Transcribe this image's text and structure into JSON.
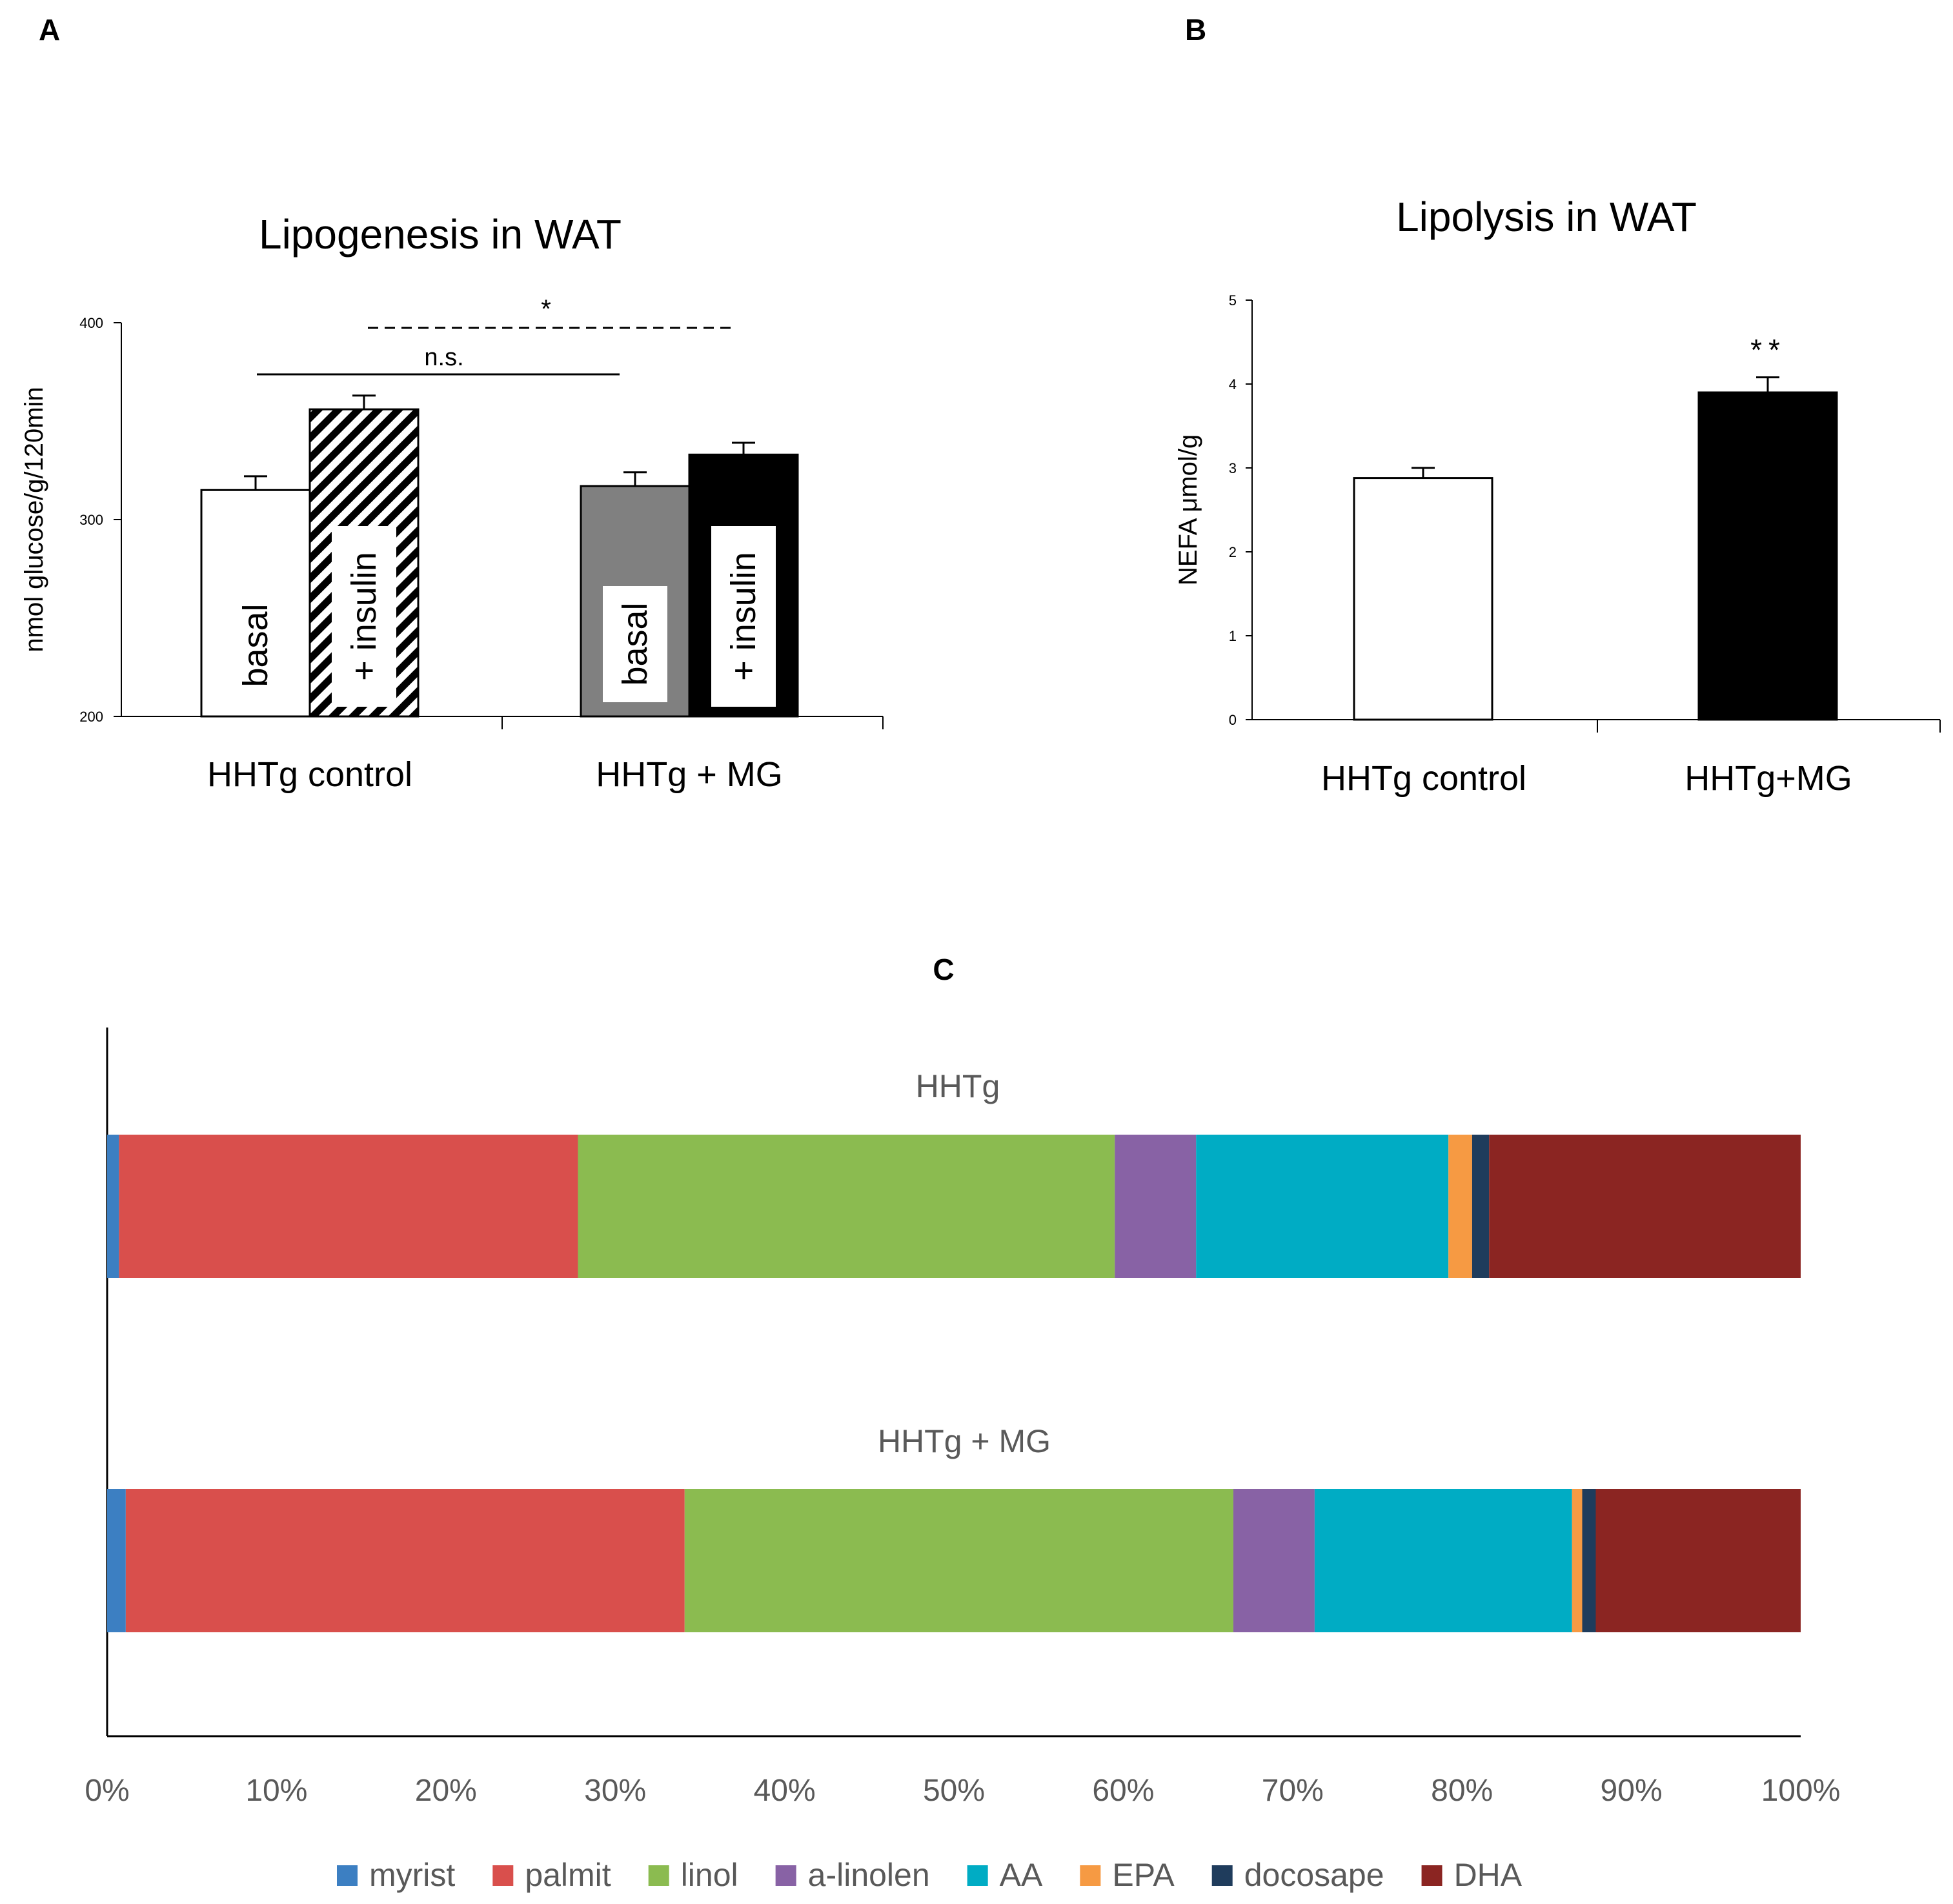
{
  "panel_labels": {
    "a": "A",
    "b": "B",
    "c": "C"
  },
  "colors": {
    "myrist": "#3c7fc2",
    "palmit": "#d94f4c",
    "linol": "#8bbb50",
    "a-linolen": "#8862a5",
    "AA": "#00acc4",
    "EPA": "#f69a43",
    "docosape": "#1f3c5c",
    "DHA": "#8b2522",
    "grey_bar": "#808080",
    "black_bar": "#000000",
    "axis": "#000000",
    "text": "#000000",
    "muted_text": "#595959"
  },
  "chart_data": [
    {
      "panel": "A",
      "type": "bar",
      "title": "Lipogenesis in WAT",
      "ylabel": "nmol glucose/g/120min",
      "xlabel": "",
      "ylim": [
        200,
        400
      ],
      "yticks": [
        "200",
        "300",
        "400"
      ],
      "categories": [
        "HHTg control",
        "HHTg + MG"
      ],
      "series": [
        {
          "name": "basal",
          "values": [
            315,
            317
          ],
          "errors": [
            7,
            7
          ],
          "styles": [
            "white",
            "grey"
          ]
        },
        {
          "name": "+ insulin",
          "values": [
            356,
            333
          ],
          "errors": [
            7,
            6
          ],
          "styles": [
            "hatched",
            "black"
          ]
        }
      ],
      "bar_labels": [
        "basal",
        "+ insulin",
        "basal",
        "+ insulin"
      ],
      "annotations": [
        {
          "text": "n.s.",
          "line": "solid",
          "from": "HHTg control basal",
          "to": "HHTg + MG basal"
        },
        {
          "text": "*",
          "line": "dashed",
          "from": "HHTg control + insulin",
          "to": "HHTg + MG + insulin"
        }
      ]
    },
    {
      "panel": "B",
      "type": "bar",
      "title": "Lipolysis in WAT",
      "ylabel": "NEFA μmol/g",
      "xlabel": "",
      "ylim": [
        0,
        5
      ],
      "yticks": [
        "0",
        "1",
        "2",
        "3",
        "4",
        "5"
      ],
      "categories": [
        "HHTg control",
        "HHTg+MG"
      ],
      "values": [
        2.88,
        3.9
      ],
      "errors": [
        0.12,
        0.18
      ],
      "styles": [
        "white",
        "black"
      ],
      "annotations": [
        {
          "text": "**",
          "category": "HHTg+MG"
        }
      ]
    },
    {
      "panel": "C",
      "type": "bar",
      "orientation": "horizontal",
      "stacking": "percent",
      "title": "C",
      "xlabel": "",
      "ylabel": "",
      "xlim": [
        0,
        100
      ],
      "xticks": [
        "0%",
        "10%",
        "20%",
        "30%",
        "40%",
        "50%",
        "60%",
        "70%",
        "80%",
        "90%",
        "100%"
      ],
      "categories": [
        "HHTg",
        "HHTg + MG"
      ],
      "legend_position": "bottom",
      "series": [
        {
          "name": "myrist",
          "values": [
            0.7,
            1.1
          ]
        },
        {
          "name": "palmit",
          "values": [
            27.1,
            33.0
          ]
        },
        {
          "name": "linol",
          "values": [
            31.7,
            32.4
          ]
        },
        {
          "name": "a-linolen",
          "values": [
            4.8,
            4.8
          ]
        },
        {
          "name": "AA",
          "values": [
            14.9,
            15.2
          ]
        },
        {
          "name": "EPA",
          "values": [
            1.4,
            0.6
          ]
        },
        {
          "name": "docosape",
          "values": [
            1.0,
            0.8
          ]
        },
        {
          "name": "DHA",
          "values": [
            18.4,
            12.1
          ]
        }
      ]
    }
  ]
}
